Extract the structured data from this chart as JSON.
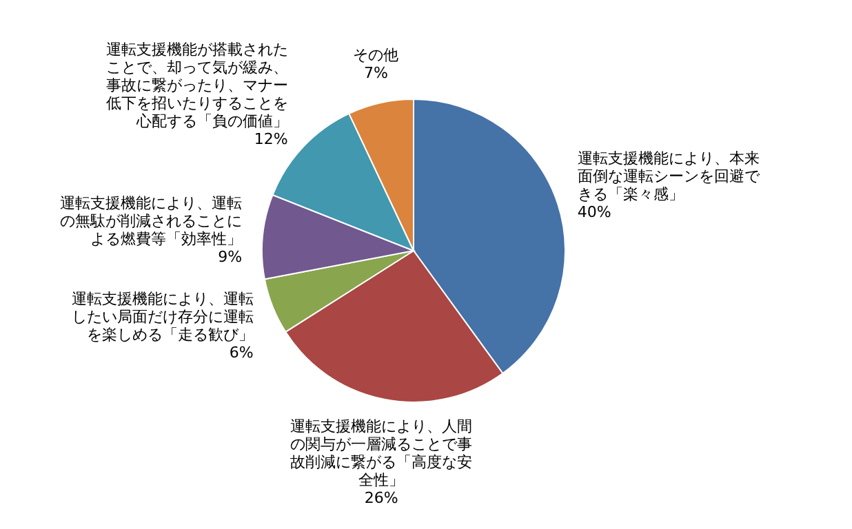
{
  "chart_data": {
    "type": "pie",
    "categories": [
      "運転支援機能により、本来面倒な運転シーンを回避できる「楽々感」",
      "運転支援機能により、人間の関与が一層減ることで事故削減に繋がる「高度な安全性」",
      "運転支援機能により、運転したい局面だけ存分に運転を楽しめる「走る歓び」",
      "運転支援機能により、運転の無駄が削減されることによる燃費等「効率性」",
      "運転支援機能が搭載されたことで、却って気が緩み、事故に繋がったり、マナー低下を招いたりすることを心配する「負の価値」",
      "その他"
    ],
    "values": [
      40,
      26,
      6,
      9,
      12,
      7
    ],
    "value_labels": [
      "40%",
      "26%",
      "6%",
      "9%",
      "12%",
      "7%"
    ],
    "colors": [
      "#4572a7",
      "#aa4643",
      "#89a54e",
      "#71588f",
      "#4198af",
      "#db843d"
    ]
  }
}
